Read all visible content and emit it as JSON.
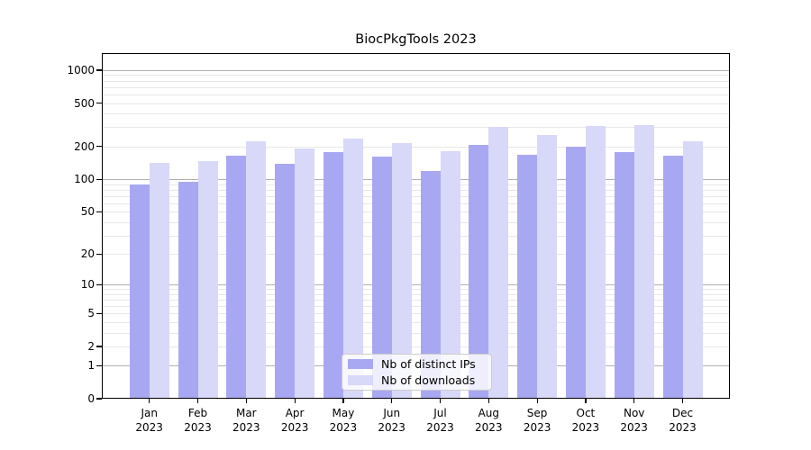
{
  "chart_data": {
    "type": "bar",
    "title": "BiocPkgTools 2023",
    "categories": [
      "Jan",
      "Feb",
      "Mar",
      "Apr",
      "May",
      "Jun",
      "Jul",
      "Aug",
      "Sep",
      "Oct",
      "Nov",
      "Dec"
    ],
    "x_sublabel": "2023",
    "series": [
      {
        "name": "Nb of distinct IPs",
        "color": "#a8a8f2",
        "values": [
          90,
          95,
          165,
          138,
          177,
          163,
          120,
          207,
          168,
          200,
          178,
          164
        ]
      },
      {
        "name": "Nb of downloads",
        "color": "#d8d8f8",
        "values": [
          142,
          146,
          225,
          192,
          238,
          214,
          182,
          302,
          253,
          308,
          316,
          224
        ]
      }
    ],
    "yscale": "log1p",
    "ylim": [
      0,
      1430
    ],
    "yticks": [
      0,
      1,
      2,
      5,
      10,
      20,
      50,
      100,
      200,
      500,
      1000
    ],
    "grid_major": [
      1,
      10,
      100,
      1000
    ],
    "grid_minor": [
      2,
      3,
      4,
      5,
      6,
      7,
      8,
      9,
      20,
      30,
      40,
      50,
      60,
      70,
      80,
      90,
      200,
      300,
      400,
      500,
      600,
      700,
      800,
      900
    ],
    "grid": {
      "major_color": "#b0b0b0",
      "minor_color": "#e7e7e7",
      "on": true
    },
    "legend_position": "lower center",
    "xlabel": "",
    "ylabel": ""
  }
}
